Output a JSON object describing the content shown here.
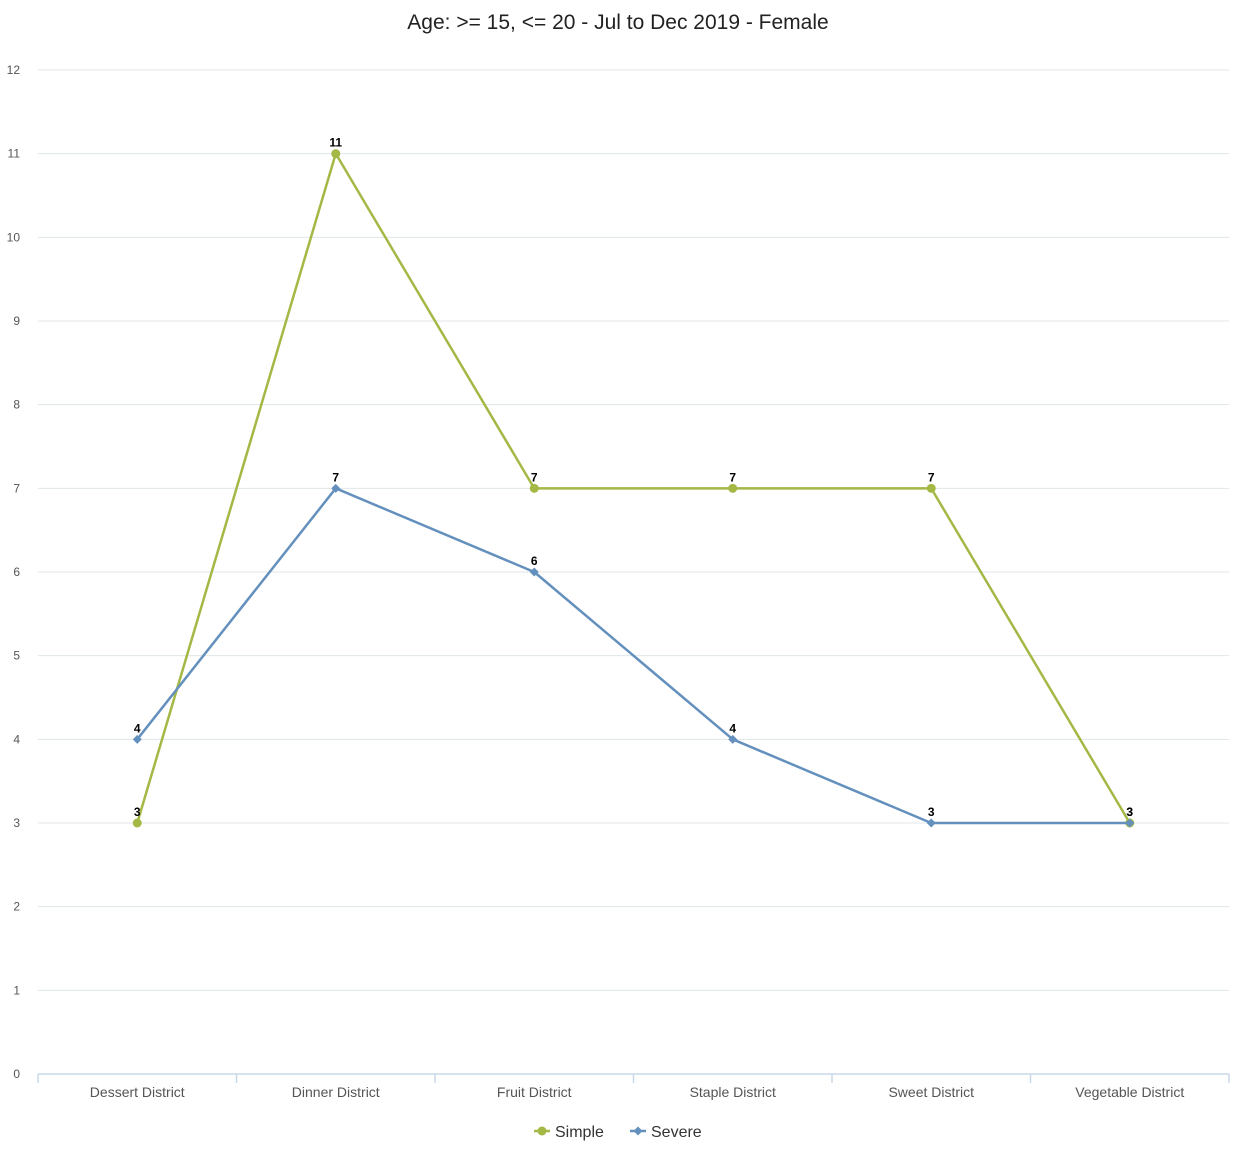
{
  "chart_data": {
    "type": "line",
    "title": "Age: >= 15, <= 20 - Jul to Dec 2019 - Female",
    "xlabel": "",
    "ylabel": "",
    "categories": [
      "Dessert District",
      "Dinner District",
      "Fruit District",
      "Staple District",
      "Sweet District",
      "Vegetable District"
    ],
    "ylim": [
      0,
      12
    ],
    "yticks": [
      0,
      1,
      2,
      3,
      4,
      5,
      6,
      7,
      8,
      9,
      10,
      11,
      12
    ],
    "grid": true,
    "legend_position": "bottom",
    "series": [
      {
        "name": "Simple",
        "values": [
          3,
          11,
          7,
          7,
          7,
          3
        ],
        "color": "#a3b845",
        "marker": "circle"
      },
      {
        "name": "Severe",
        "values": [
          4,
          7,
          6,
          4,
          3,
          3
        ],
        "color": "#6490bd",
        "marker": "diamond"
      }
    ]
  }
}
